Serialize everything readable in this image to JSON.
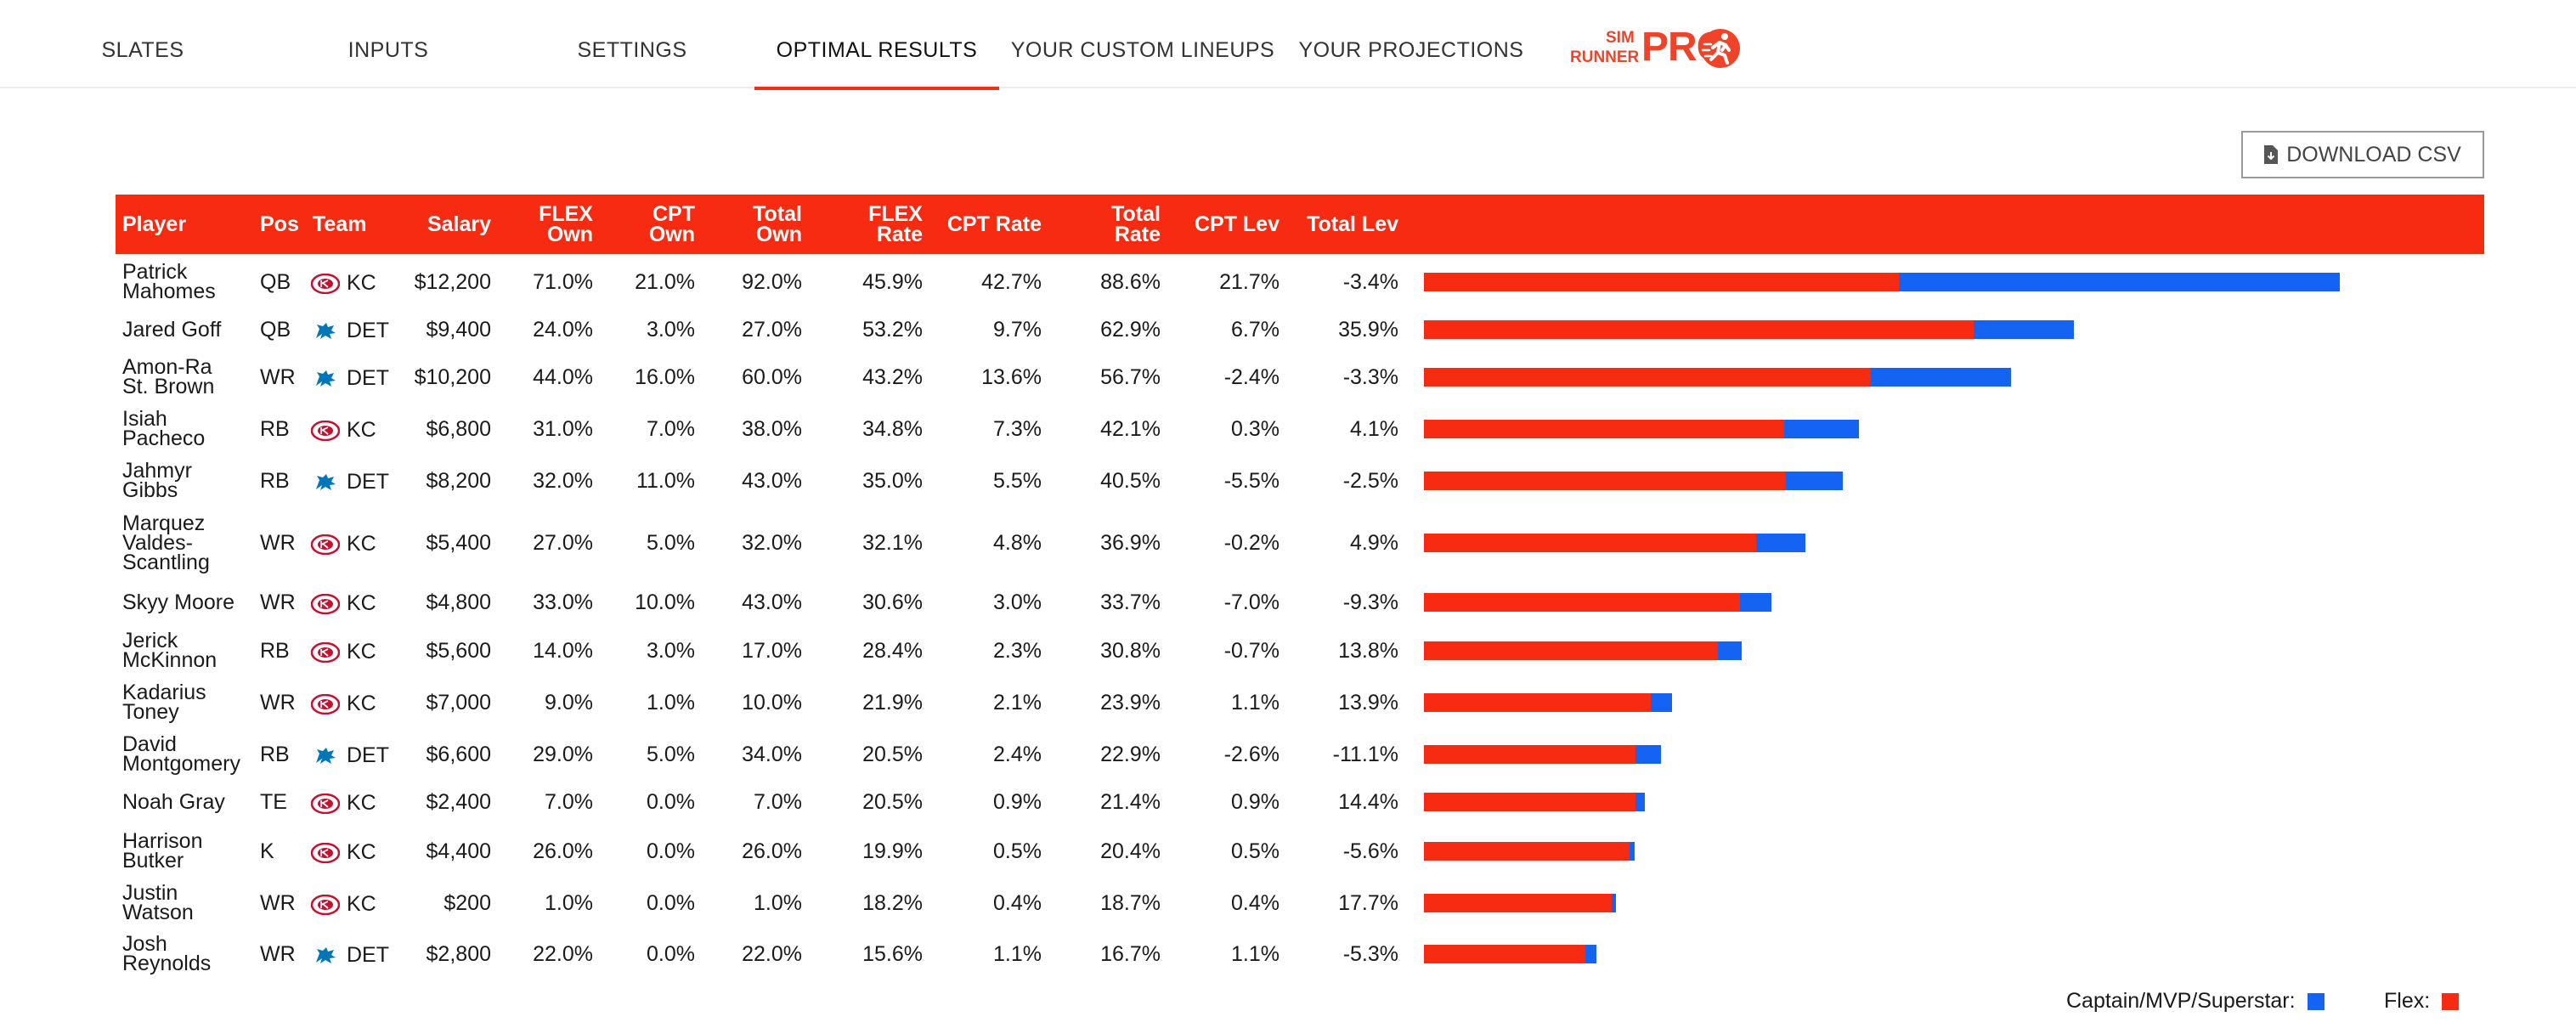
{
  "nav": {
    "tabs": [
      {
        "label": "SLATES"
      },
      {
        "label": "INPUTS"
      },
      {
        "label": "SETTINGS"
      },
      {
        "label": "OPTIMAL RESULTS"
      },
      {
        "label": "YOUR CUSTOM LINEUPS"
      },
      {
        "label": "YOUR PROJECTIONS"
      }
    ],
    "active_tab": "OPTIMAL RESULTS",
    "logo": {
      "sim": "SIM",
      "runner": "RUNNER",
      "pro": "PRO"
    }
  },
  "toolbar": {
    "download_label": "DOWNLOAD CSV"
  },
  "colors": {
    "accent": "#f62b11",
    "captain": "#1463f3",
    "flex": "#f62b11"
  },
  "table": {
    "headers": {
      "player": "Player",
      "pos": "Pos",
      "team": "Team",
      "salary": "Salary",
      "flex_own": [
        "FLEX",
        "Own"
      ],
      "cpt_own": [
        "CPT",
        "Own"
      ],
      "total_own": [
        "Total",
        "Own"
      ],
      "flex_rate": [
        "FLEX",
        "Rate"
      ],
      "cpt_rate": "CPT Rate",
      "total_rate": [
        "Total",
        "Rate"
      ],
      "cpt_lev": "CPT Lev",
      "total_lev": "Total Lev"
    },
    "rows": [
      {
        "player": [
          "Patrick",
          "Mahomes"
        ],
        "pos": "QB",
        "team": "KC",
        "team_icon": "chiefs-logo-icon",
        "salary": "$12,200",
        "flex_own": "71.0%",
        "cpt_own": "21.0%",
        "total_own": "92.0%",
        "flex_rate": "45.9%",
        "cpt_rate": "42.7%",
        "total_rate": "88.6%",
        "cpt_lev": "21.7%",
        "total_lev": "-3.4%"
      },
      {
        "player": [
          "Jared Goff"
        ],
        "pos": "QB",
        "team": "DET",
        "team_icon": "lions-logo-icon",
        "salary": "$9,400",
        "flex_own": "24.0%",
        "cpt_own": "3.0%",
        "total_own": "27.0%",
        "flex_rate": "53.2%",
        "cpt_rate": "9.7%",
        "total_rate": "62.9%",
        "cpt_lev": "6.7%",
        "total_lev": "35.9%"
      },
      {
        "player": [
          "Amon-Ra",
          "St. Brown"
        ],
        "pos": "WR",
        "team": "DET",
        "team_icon": "lions-logo-icon",
        "salary": "$10,200",
        "flex_own": "44.0%",
        "cpt_own": "16.0%",
        "total_own": "60.0%",
        "flex_rate": "43.2%",
        "cpt_rate": "13.6%",
        "total_rate": "56.7%",
        "cpt_lev": "-2.4%",
        "total_lev": "-3.3%"
      },
      {
        "player": [
          "Isiah",
          "Pacheco"
        ],
        "pos": "RB",
        "team": "KC",
        "team_icon": "chiefs-logo-icon",
        "salary": "$6,800",
        "flex_own": "31.0%",
        "cpt_own": "7.0%",
        "total_own": "38.0%",
        "flex_rate": "34.8%",
        "cpt_rate": "7.3%",
        "total_rate": "42.1%",
        "cpt_lev": "0.3%",
        "total_lev": "4.1%"
      },
      {
        "player": [
          "Jahmyr",
          "Gibbs"
        ],
        "pos": "RB",
        "team": "DET",
        "team_icon": "lions-logo-icon",
        "salary": "$8,200",
        "flex_own": "32.0%",
        "cpt_own": "11.0%",
        "total_own": "43.0%",
        "flex_rate": "35.0%",
        "cpt_rate": "5.5%",
        "total_rate": "40.5%",
        "cpt_lev": "-5.5%",
        "total_lev": "-2.5%"
      },
      {
        "player": [
          "Marquez",
          "Valdes-",
          "Scantling"
        ],
        "pos": "WR",
        "team": "KC",
        "team_icon": "chiefs-logo-icon",
        "salary": "$5,400",
        "flex_own": "27.0%",
        "cpt_own": "5.0%",
        "total_own": "32.0%",
        "flex_rate": "32.1%",
        "cpt_rate": "4.8%",
        "total_rate": "36.9%",
        "cpt_lev": "-0.2%",
        "total_lev": "4.9%"
      },
      {
        "player": [
          "Skyy Moore"
        ],
        "pos": "WR",
        "team": "KC",
        "team_icon": "chiefs-logo-icon",
        "salary": "$4,800",
        "flex_own": "33.0%",
        "cpt_own": "10.0%",
        "total_own": "43.0%",
        "flex_rate": "30.6%",
        "cpt_rate": "3.0%",
        "total_rate": "33.7%",
        "cpt_lev": "-7.0%",
        "total_lev": "-9.3%"
      },
      {
        "player": [
          "Jerick",
          "McKinnon"
        ],
        "pos": "RB",
        "team": "KC",
        "team_icon": "chiefs-logo-icon",
        "salary": "$5,600",
        "flex_own": "14.0%",
        "cpt_own": "3.0%",
        "total_own": "17.0%",
        "flex_rate": "28.4%",
        "cpt_rate": "2.3%",
        "total_rate": "30.8%",
        "cpt_lev": "-0.7%",
        "total_lev": "13.8%"
      },
      {
        "player": [
          "Kadarius",
          "Toney"
        ],
        "pos": "WR",
        "team": "KC",
        "team_icon": "chiefs-logo-icon",
        "salary": "$7,000",
        "flex_own": "9.0%",
        "cpt_own": "1.0%",
        "total_own": "10.0%",
        "flex_rate": "21.9%",
        "cpt_rate": "2.1%",
        "total_rate": "23.9%",
        "cpt_lev": "1.1%",
        "total_lev": "13.9%"
      },
      {
        "player": [
          "David",
          "Montgomery"
        ],
        "pos": "RB",
        "team": "DET",
        "team_icon": "lions-logo-icon",
        "salary": "$6,600",
        "flex_own": "29.0%",
        "cpt_own": "5.0%",
        "total_own": "34.0%",
        "flex_rate": "20.5%",
        "cpt_rate": "2.4%",
        "total_rate": "22.9%",
        "cpt_lev": "-2.6%",
        "total_lev": "-11.1%"
      },
      {
        "player": [
          "Noah Gray"
        ],
        "pos": "TE",
        "team": "KC",
        "team_icon": "chiefs-logo-icon",
        "salary": "$2,400",
        "flex_own": "7.0%",
        "cpt_own": "0.0%",
        "total_own": "7.0%",
        "flex_rate": "20.5%",
        "cpt_rate": "0.9%",
        "total_rate": "21.4%",
        "cpt_lev": "0.9%",
        "total_lev": "14.4%"
      },
      {
        "player": [
          "Harrison",
          "Butker"
        ],
        "pos": "K",
        "team": "KC",
        "team_icon": "chiefs-logo-icon",
        "salary": "$4,400",
        "flex_own": "26.0%",
        "cpt_own": "0.0%",
        "total_own": "26.0%",
        "flex_rate": "19.9%",
        "cpt_rate": "0.5%",
        "total_rate": "20.4%",
        "cpt_lev": "0.5%",
        "total_lev": "-5.6%"
      },
      {
        "player": [
          "Justin",
          "Watson"
        ],
        "pos": "WR",
        "team": "KC",
        "team_icon": "chiefs-logo-icon",
        "salary": "$200",
        "flex_own": "1.0%",
        "cpt_own": "0.0%",
        "total_own": "1.0%",
        "flex_rate": "18.2%",
        "cpt_rate": "0.4%",
        "total_rate": "18.7%",
        "cpt_lev": "0.4%",
        "total_lev": "17.7%"
      },
      {
        "player": [
          "Josh",
          "Reynolds"
        ],
        "pos": "WR",
        "team": "DET",
        "team_icon": "lions-logo-icon",
        "salary": "$2,800",
        "flex_own": "22.0%",
        "cpt_own": "0.0%",
        "total_own": "22.0%",
        "flex_rate": "15.6%",
        "cpt_rate": "1.1%",
        "total_rate": "16.7%",
        "cpt_lev": "1.1%",
        "total_lev": "-5.3%"
      }
    ]
  },
  "chart_data": {
    "type": "bar",
    "orientation": "horizontal",
    "stacked": true,
    "categories": [
      "Patrick Mahomes",
      "Jared Goff",
      "Amon-Ra St. Brown",
      "Isiah Pacheco",
      "Jahmyr Gibbs",
      "Marquez Valdes-Scantling",
      "Skyy Moore",
      "Jerick McKinnon",
      "Kadarius Toney",
      "David Montgomery",
      "Noah Gray",
      "Harrison Butker",
      "Justin Watson",
      "Josh Reynolds"
    ],
    "series": [
      {
        "name": "Flex",
        "color": "#f62b11",
        "values": [
          45.9,
          53.2,
          43.2,
          34.8,
          35.0,
          32.1,
          30.6,
          28.4,
          21.9,
          20.5,
          20.5,
          19.9,
          18.2,
          15.6
        ]
      },
      {
        "name": "Captain/MVP/Superstar",
        "color": "#1463f3",
        "values": [
          42.7,
          9.7,
          13.6,
          7.3,
          5.5,
          4.8,
          3.0,
          2.3,
          2.1,
          2.4,
          0.9,
          0.5,
          0.4,
          1.1
        ]
      }
    ],
    "legend": {
      "position": "bottom-right",
      "captain_label": "Captain/MVP/Superstar:",
      "flex_label": "Flex:"
    }
  }
}
